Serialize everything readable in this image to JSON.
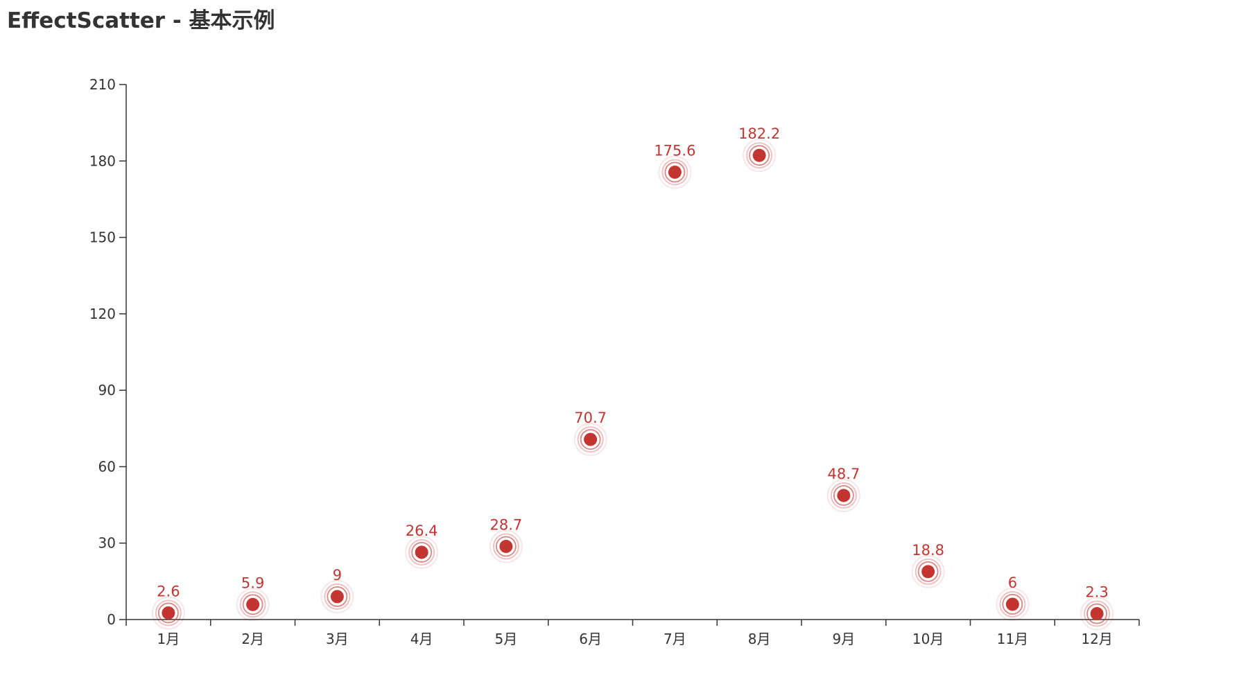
{
  "title": "EffectScatter - 基本示例",
  "chart_data": {
    "type": "scatter",
    "title": "EffectScatter - 基本示例",
    "categories": [
      "1月",
      "2月",
      "3月",
      "4月",
      "5月",
      "6月",
      "7月",
      "8月",
      "9月",
      "10月",
      "11月",
      "12月"
    ],
    "series": [
      {
        "values": [
          2.6,
          5.9,
          9,
          26.4,
          28.7,
          70.7,
          175.6,
          182.2,
          48.7,
          18.8,
          6,
          2.3
        ]
      }
    ],
    "ylim": [
      0,
      210
    ],
    "yticks": [
      0,
      30,
      60,
      90,
      120,
      150,
      180,
      210
    ],
    "grid": false,
    "legend": "none",
    "point_style": "ripple-effect",
    "color": "#c23531",
    "axis_color": "#333333"
  }
}
